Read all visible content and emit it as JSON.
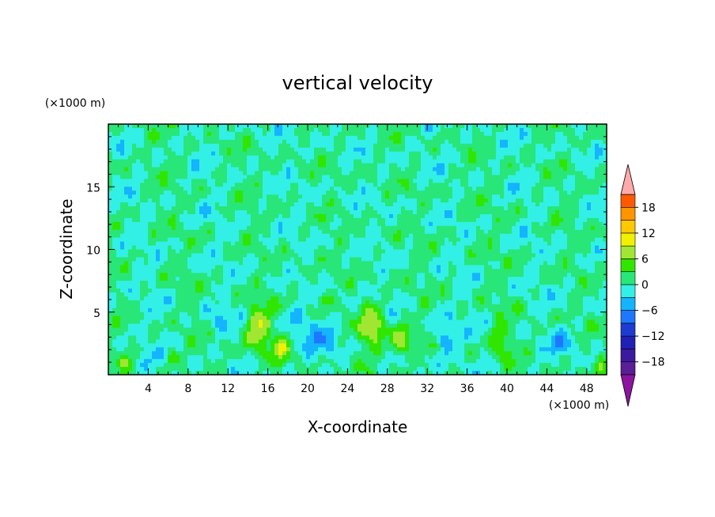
{
  "chart_data": {
    "type": "heatmap",
    "title": "vertical velocity",
    "xlabel": "X-coordinate",
    "ylabel": "Z-coordinate",
    "x_unit": "(×1000 m)",
    "y_unit": "(×1000 m)",
    "xlim": [
      0,
      50
    ],
    "ylim": [
      0,
      20
    ],
    "x_ticks": [
      "4",
      "8",
      "12",
      "16",
      "20",
      "24",
      "28",
      "32",
      "36",
      "40",
      "44",
      "48"
    ],
    "y_ticks": [
      "5",
      "10",
      "15"
    ],
    "colorbar": {
      "min": -21,
      "max": 21,
      "step": 3,
      "tick_labels": [
        "18",
        "12",
        "6",
        "0",
        "−6",
        "−12",
        "−18"
      ],
      "tick_values": [
        18,
        12,
        6,
        0,
        -6,
        -12,
        -18
      ],
      "levels": [
        {
          "lo": -21,
          "hi": -18,
          "color": "#5a1e96"
        },
        {
          "lo": -18,
          "hi": -15,
          "color": "#3c1aa0"
        },
        {
          "lo": -15,
          "hi": -12,
          "color": "#2020b4"
        },
        {
          "lo": -12,
          "hi": -9,
          "color": "#1e3cd2"
        },
        {
          "lo": -9,
          "hi": -6,
          "color": "#1e78ff"
        },
        {
          "lo": -6,
          "hi": -3,
          "color": "#14b4ff"
        },
        {
          "lo": -3,
          "hi": 0,
          "color": "#32f0e6"
        },
        {
          "lo": 0,
          "hi": 3,
          "color": "#28e678"
        },
        {
          "lo": 3,
          "hi": 6,
          "color": "#30e600"
        },
        {
          "lo": 6,
          "hi": 9,
          "color": "#a0e632"
        },
        {
          "lo": 9,
          "hi": 12,
          "color": "#f0f000"
        },
        {
          "lo": 12,
          "hi": 15,
          "color": "#ffc800"
        },
        {
          "lo": 15,
          "hi": 18,
          "color": "#ff9600"
        },
        {
          "lo": 18,
          "hi": 21,
          "color": "#ff5a00"
        }
      ],
      "under_color": "#8c14a0",
      "over_color": "#ffaaaa"
    },
    "field_features": [
      {
        "x": 15,
        "z": 3.8,
        "sx": 1.2,
        "sz": 1.8,
        "amp": 9
      },
      {
        "x": 17.3,
        "z": 2.2,
        "sx": 0.9,
        "sz": 1.1,
        "amp": 7
      },
      {
        "x": 26.5,
        "z": 3.8,
        "sx": 1.2,
        "sz": 1.8,
        "amp": 9
      },
      {
        "x": 29.5,
        "z": 2.5,
        "sx": 1.1,
        "sz": 1.4,
        "amp": 7
      },
      {
        "x": 39.3,
        "z": 2.8,
        "sx": 0.9,
        "sz": 1.5,
        "amp": 6
      },
      {
        "x": 6.5,
        "z": 1.3,
        "sx": 0.6,
        "sz": 0.7,
        "amp": 5
      },
      {
        "x": 21.6,
        "z": 6.0,
        "sx": 0.5,
        "sz": 0.6,
        "amp": 5
      },
      {
        "x": 1.5,
        "z": 1.2,
        "sx": 0.5,
        "sz": 0.7,
        "amp": 4
      },
      {
        "x": 49.5,
        "z": 1.0,
        "sx": 0.5,
        "sz": 0.7,
        "amp": 4
      },
      {
        "x": 21.2,
        "z": 2.8,
        "sx": 2.2,
        "sz": 1.6,
        "amp": -4
      },
      {
        "x": 33.8,
        "z": 2.8,
        "sx": 1.1,
        "sz": 1.6,
        "amp": -5
      },
      {
        "x": 11.0,
        "z": 4.3,
        "sx": 1.1,
        "sz": 1.0,
        "amp": -4
      },
      {
        "x": 45.5,
        "z": 2.6,
        "sx": 1.3,
        "sz": 1.1,
        "amp": -4
      },
      {
        "x": 3.8,
        "z": 1.0,
        "sx": 0.6,
        "sz": 0.8,
        "amp": -5
      },
      {
        "x": 18.5,
        "z": 4.6,
        "sx": 1.0,
        "sz": 0.8,
        "amp": -4
      }
    ]
  }
}
